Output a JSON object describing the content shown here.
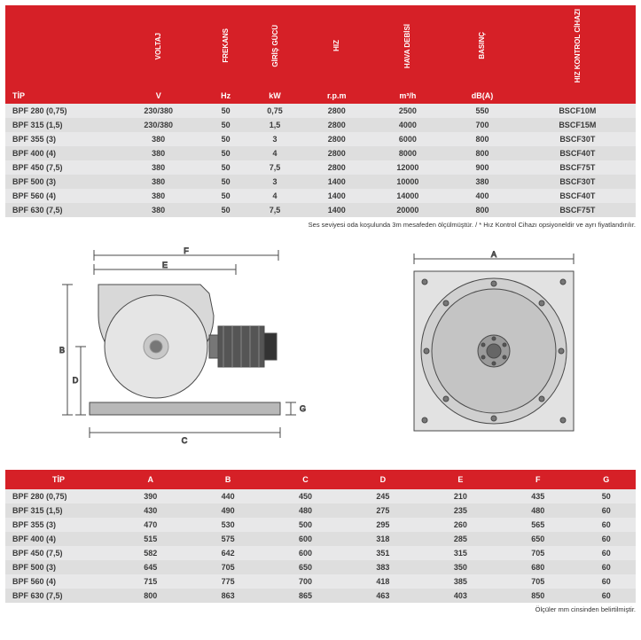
{
  "table1": {
    "type": "table",
    "header_bg": "#d62027",
    "header_fg": "#ffffff",
    "row_colors": [
      "#e8e8e9",
      "#dedede"
    ],
    "columns_vert": [
      "",
      "VOLTAJ",
      "FREKANS",
      "GİRİŞ GÜCÜ",
      "HIZ",
      "HAVA DEBİSİ",
      "BASINÇ",
      "HIZ KONTROL CİHAZI"
    ],
    "columns_unit": [
      "TİP",
      "V",
      "Hz",
      "kW",
      "r.p.m",
      "m³/h",
      "dB(A)",
      ""
    ],
    "rows": [
      [
        "BPF 280 (0,75)",
        "230/380",
        "50",
        "0,75",
        "2800",
        "2500",
        "550",
        "BSCF10M"
      ],
      [
        "BPF 315 (1,5)",
        "230/380",
        "50",
        "1,5",
        "2800",
        "4000",
        "700",
        "BSCF15M"
      ],
      [
        "BPF 355 (3)",
        "380",
        "50",
        "3",
        "2800",
        "6000",
        "800",
        "BSCF30T"
      ],
      [
        "BPF 400 (4)",
        "380",
        "50",
        "4",
        "2800",
        "8000",
        "800",
        "BSCF40T"
      ],
      [
        "BPF 450 (7,5)",
        "380",
        "50",
        "7,5",
        "2800",
        "12000",
        "900",
        "BSCF75T"
      ],
      [
        "BPF 500 (3)",
        "380",
        "50",
        "3",
        "1400",
        "10000",
        "380",
        "BSCF30T"
      ],
      [
        "BPF 560 (4)",
        "380",
        "50",
        "4",
        "1400",
        "14000",
        "400",
        "BSCF40T"
      ],
      [
        "BPF 630 (7,5)",
        "380",
        "50",
        "7,5",
        "1400",
        "20000",
        "800",
        "BSCF75T"
      ]
    ],
    "footnote": "Ses seviyesi oda koşulunda 3m mesafeden ölçülmüştür. / * Hız Kontrol Cihazı opsiyoneldir ve ayrı fiyatlandırılır."
  },
  "diagrams": {
    "type": "engineering-drawing",
    "labels_side": [
      "F",
      "E",
      "B",
      "D",
      "C",
      "G"
    ],
    "labels_front": [
      "A"
    ],
    "stroke": "#4a4a4a",
    "fill_dark": "#555",
    "fill_light": "#d8d8d8"
  },
  "table2": {
    "type": "table",
    "header_bg": "#d62027",
    "header_fg": "#ffffff",
    "row_colors": [
      "#e8e8e9",
      "#dedede"
    ],
    "columns": [
      "TİP",
      "A",
      "B",
      "C",
      "D",
      "E",
      "F",
      "G"
    ],
    "rows": [
      [
        "BPF 280 (0,75)",
        "390",
        "440",
        "450",
        "245",
        "210",
        "435",
        "50"
      ],
      [
        "BPF 315 (1,5)",
        "430",
        "490",
        "480",
        "275",
        "235",
        "480",
        "60"
      ],
      [
        "BPF 355 (3)",
        "470",
        "530",
        "500",
        "295",
        "260",
        "565",
        "60"
      ],
      [
        "BPF 400 (4)",
        "515",
        "575",
        "600",
        "318",
        "285",
        "650",
        "60"
      ],
      [
        "BPF 450 (7,5)",
        "582",
        "642",
        "600",
        "351",
        "315",
        "705",
        "60"
      ],
      [
        "BPF 500 (3)",
        "645",
        "705",
        "650",
        "383",
        "350",
        "680",
        "60"
      ],
      [
        "BPF 560 (4)",
        "715",
        "775",
        "700",
        "418",
        "385",
        "705",
        "60"
      ],
      [
        "BPF 630 (7,5)",
        "800",
        "863",
        "865",
        "463",
        "403",
        "850",
        "60"
      ]
    ],
    "footnote": "Ölçüler mm cinsinden belirtilmiştir."
  }
}
